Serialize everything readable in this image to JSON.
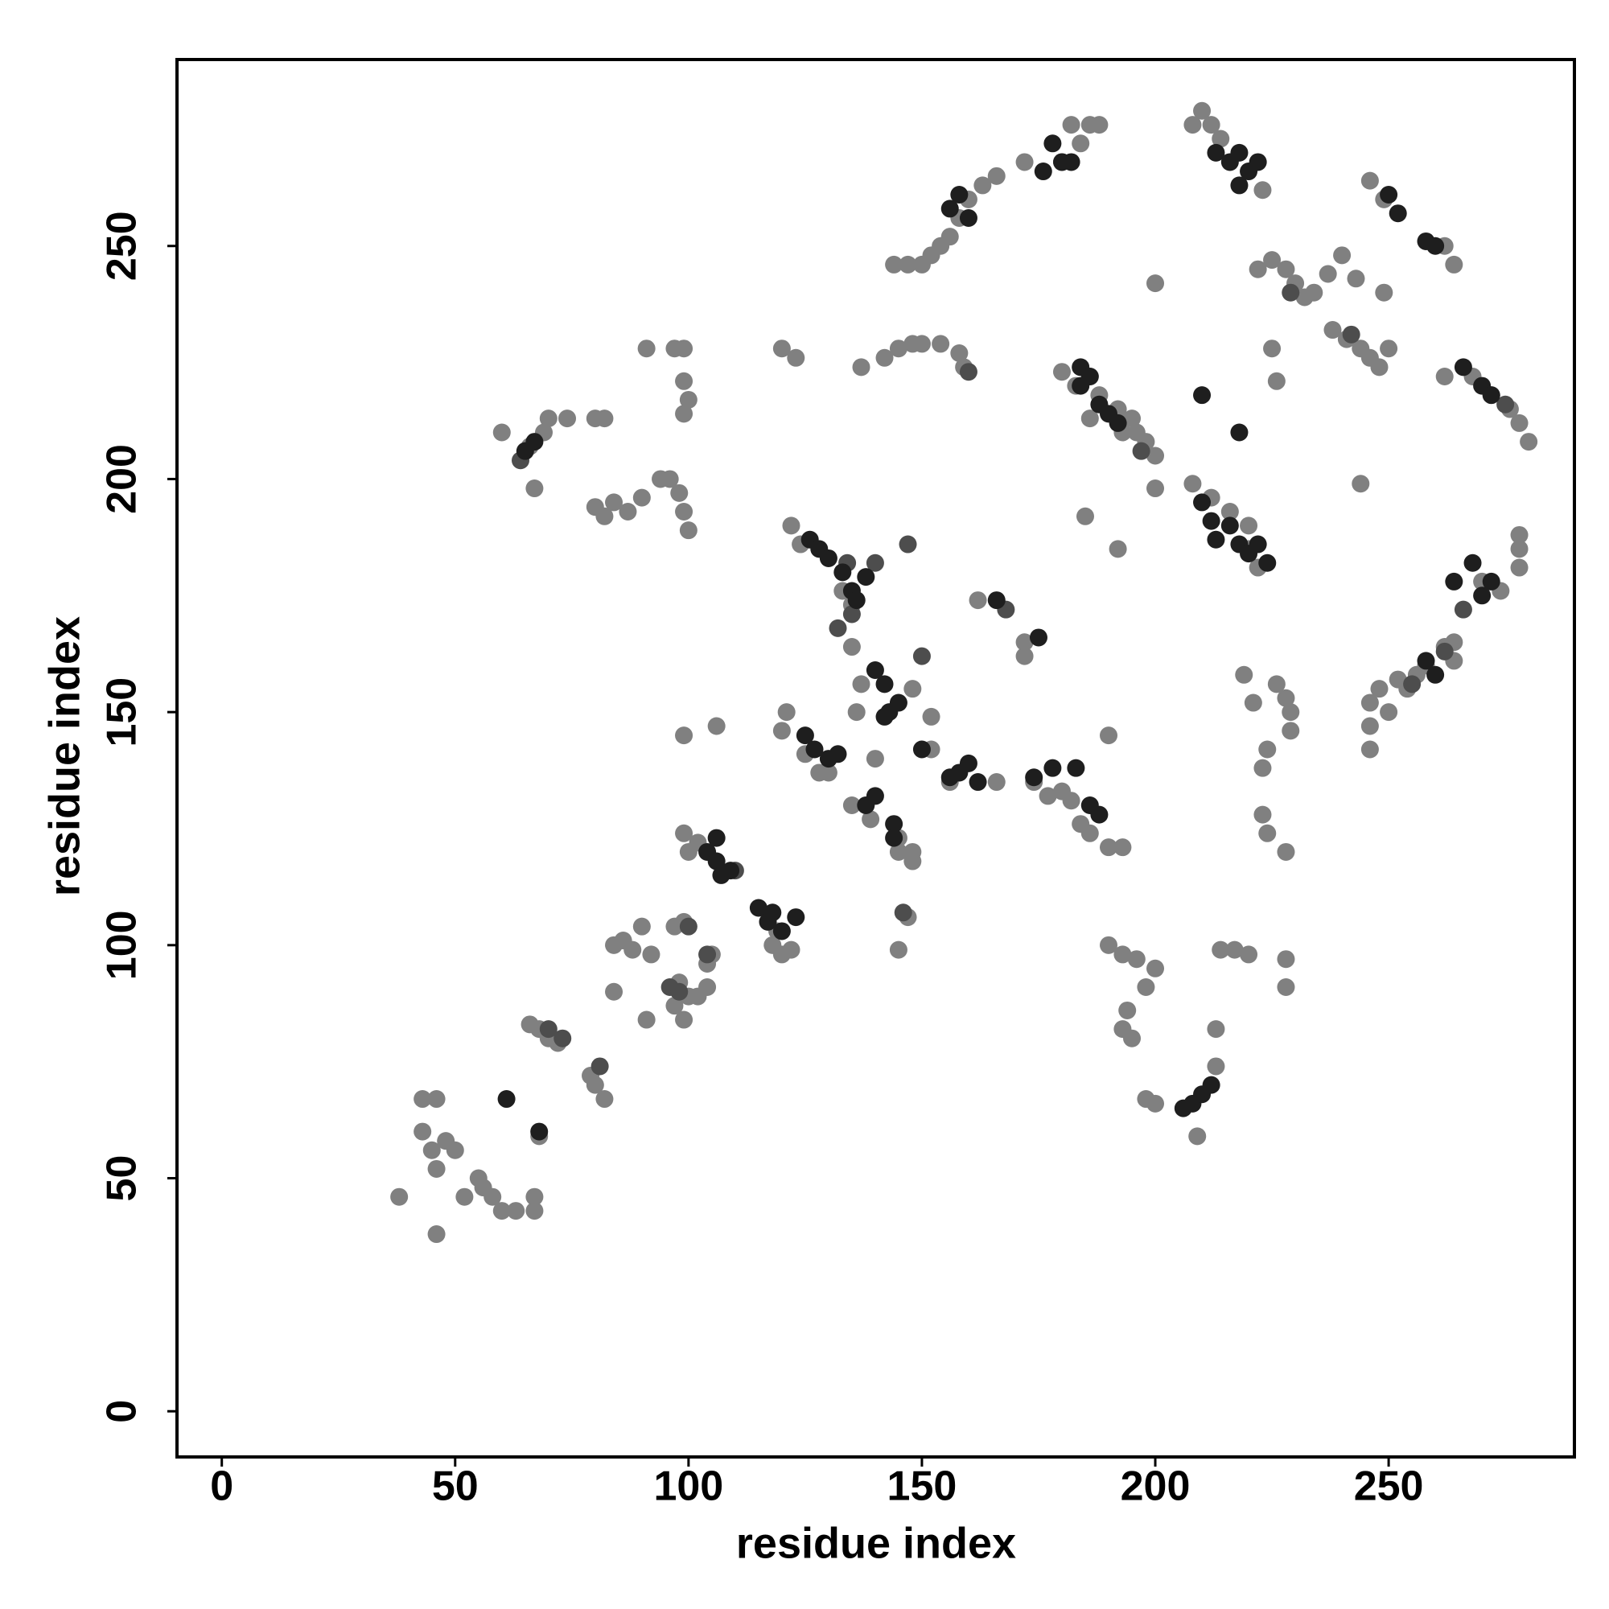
{
  "chart_data": {
    "type": "scatter",
    "x_label": "residue index",
    "y_label": "residue index",
    "xlim": [
      -9.6,
      289.8
    ],
    "ylim": [
      -9.8,
      290
    ],
    "xticks": [
      0,
      50,
      100,
      150,
      200,
      250
    ],
    "yticks": [
      0,
      50,
      100,
      150,
      200,
      250
    ],
    "grid": false,
    "series": [
      {
        "color": "#808080",
        "x": [
          38,
          43,
          43,
          45,
          46,
          46,
          46,
          48,
          50,
          52,
          55,
          56,
          58,
          60,
          63,
          67,
          67,
          68,
          66,
          68,
          70,
          72,
          79,
          80,
          82,
          84,
          84,
          86,
          88,
          90,
          91,
          92,
          97,
          98,
          99,
          100,
          102,
          104,
          104,
          105,
          97,
          99,
          100,
          99,
          102,
          106,
          99,
          118,
          120,
          122,
          119,
          145,
          147,
          148,
          145,
          60,
          66,
          67,
          69,
          70,
          74,
          80,
          82,
          80,
          82,
          84,
          87,
          90,
          94,
          96,
          98,
          99,
          100,
          99,
          100,
          99,
          91,
          97,
          99,
          120,
          123,
          137,
          142,
          145,
          148,
          150,
          154,
          158,
          159,
          144,
          147,
          150,
          152,
          154,
          156,
          158,
          160,
          163,
          166,
          172,
          180,
          184,
          186,
          188,
          182,
          208,
          210,
          212,
          214,
          223,
          222,
          225,
          228,
          230,
          232,
          234,
          237,
          240,
          243,
          238,
          241,
          244,
          246,
          248,
          250,
          249,
          246,
          249,
          262,
          264,
          244,
          200,
          185,
          192,
          190,
          190,
          193,
          196,
          200,
          198,
          194,
          193,
          195,
          198,
          200,
          213,
          213,
          209,
          214,
          217,
          220,
          226,
          228,
          229,
          229,
          224,
          223,
          223,
          224,
          228,
          228,
          228,
          219,
          221,
          246,
          246,
          246,
          248,
          250,
          252,
          254,
          256,
          258,
          262,
          264,
          264,
          278,
          278,
          278,
          270,
          274,
          280,
          278,
          276,
          272,
          268,
          262,
          226,
          225,
          172,
          172,
          162,
          148,
          152,
          156,
          166,
          152,
          137,
          135,
          136,
          140,
          128,
          125,
          121,
          120,
          122,
          124,
          133,
          135,
          130,
          135,
          139,
          145,
          148,
          182,
          180,
          174,
          177,
          184,
          186,
          190,
          193,
          208,
          212,
          216,
          220,
          222,
          220,
          198,
          200,
          196,
          192,
          188,
          186,
          180,
          200,
          195,
          193,
          186,
          183
        ],
        "values": [
          46,
          67,
          60,
          56,
          38,
          67,
          52,
          58,
          56,
          46,
          50,
          48,
          46,
          43,
          43,
          43,
          46,
          59,
          83,
          82,
          80,
          79,
          72,
          70,
          67,
          90,
          100,
          101,
          99,
          104,
          84,
          98,
          87,
          92,
          84,
          89,
          89,
          91,
          96,
          98,
          104,
          105,
          120,
          124,
          122,
          147,
          145,
          100,
          98,
          99,
          103,
          99,
          106,
          118,
          120,
          210,
          207,
          198,
          210,
          213,
          213,
          213,
          213,
          194,
          192,
          195,
          193,
          196,
          200,
          200,
          197,
          193,
          189,
          214,
          217,
          221,
          228,
          228,
          228,
          228,
          226,
          224,
          226,
          228,
          229,
          229,
          229,
          227,
          224,
          246,
          246,
          246,
          248,
          250,
          252,
          256,
          260,
          263,
          265,
          268,
          268,
          272,
          276,
          276,
          276,
          276,
          279,
          276,
          273,
          262,
          245,
          247,
          245,
          242,
          239,
          240,
          244,
          248,
          243,
          232,
          230,
          228,
          226,
          224,
          228,
          240,
          264,
          260,
          250,
          246,
          199,
          242,
          192,
          185,
          145,
          100,
          98,
          97,
          95,
          91,
          86,
          82,
          80,
          67,
          66,
          82,
          74,
          59,
          99,
          99,
          98,
          156,
          153,
          150,
          146,
          142,
          138,
          128,
          124,
          120,
          97,
          91,
          158,
          152,
          152,
          147,
          142,
          155,
          150,
          157,
          155,
          158,
          160,
          164,
          165,
          161,
          188,
          181,
          185,
          178,
          176,
          208,
          212,
          215,
          218,
          222,
          222,
          221,
          228,
          162,
          165,
          174,
          155,
          149,
          135,
          135,
          142,
          156,
          164,
          150,
          140,
          137,
          141,
          150,
          146,
          190,
          186,
          176,
          173,
          137,
          130,
          127,
          123,
          120,
          131,
          133,
          135,
          132,
          126,
          124,
          121,
          121,
          199,
          196,
          193,
          190,
          181,
          185,
          208,
          205,
          210,
          215,
          218,
          222,
          223,
          198,
          213,
          210,
          213,
          220
        ]
      },
      {
        "color": "#4d4d4d",
        "x": [
          64,
          73,
          81,
          96,
          104,
          110,
          100,
          147,
          134,
          140,
          132,
          150,
          160,
          70,
          98,
          135,
          146,
          168,
          197,
          229,
          242,
          255,
          262,
          266,
          275
        ],
        "values": [
          204,
          80,
          74,
          91,
          98,
          116,
          104,
          186,
          182,
          182,
          168,
          162,
          223,
          82,
          90,
          171,
          107,
          172,
          206,
          240,
          231,
          156,
          163,
          172,
          216
        ]
      },
      {
        "color": "#1e1e1e",
        "x": [
          67,
          65,
          68,
          61,
          104,
          106,
          107,
          109,
          106,
          115,
          117,
          118,
          120,
          123,
          125,
          127,
          130,
          132,
          126,
          128,
          130,
          133,
          135,
          138,
          136,
          140,
          142,
          143,
          145,
          142,
          140,
          138,
          144,
          144,
          160,
          158,
          162,
          156,
          150,
          174,
          178,
          183,
          186,
          188,
          175,
          166,
          184,
          186,
          184,
          188,
          190,
          192,
          180,
          178,
          176,
          182,
          158,
          160,
          156,
          210,
          218,
          210,
          212,
          213,
          216,
          218,
          220,
          222,
          224,
          213,
          216,
          218,
          220,
          222,
          218,
          250,
          252,
          258,
          260,
          264,
          268,
          272,
          270,
          266,
          270,
          272,
          260,
          258,
          206,
          208,
          210,
          212
        ],
        "values": [
          208,
          206,
          60,
          67,
          120,
          118,
          115,
          116,
          123,
          108,
          105,
          107,
          103,
          106,
          145,
          142,
          140,
          141,
          187,
          185,
          183,
          180,
          176,
          179,
          174,
          159,
          156,
          150,
          152,
          149,
          132,
          130,
          126,
          123,
          139,
          137,
          135,
          136,
          142,
          136,
          138,
          138,
          130,
          128,
          166,
          174,
          224,
          222,
          220,
          216,
          214,
          212,
          268,
          272,
          266,
          268,
          261,
          256,
          258,
          218,
          210,
          195,
          191,
          187,
          190,
          186,
          184,
          186,
          182,
          270,
          268,
          270,
          266,
          268,
          263,
          261,
          257,
          251,
          250,
          178,
          182,
          178,
          175,
          224,
          220,
          218,
          158,
          161,
          65,
          66,
          68,
          70
        ]
      }
    ]
  }
}
